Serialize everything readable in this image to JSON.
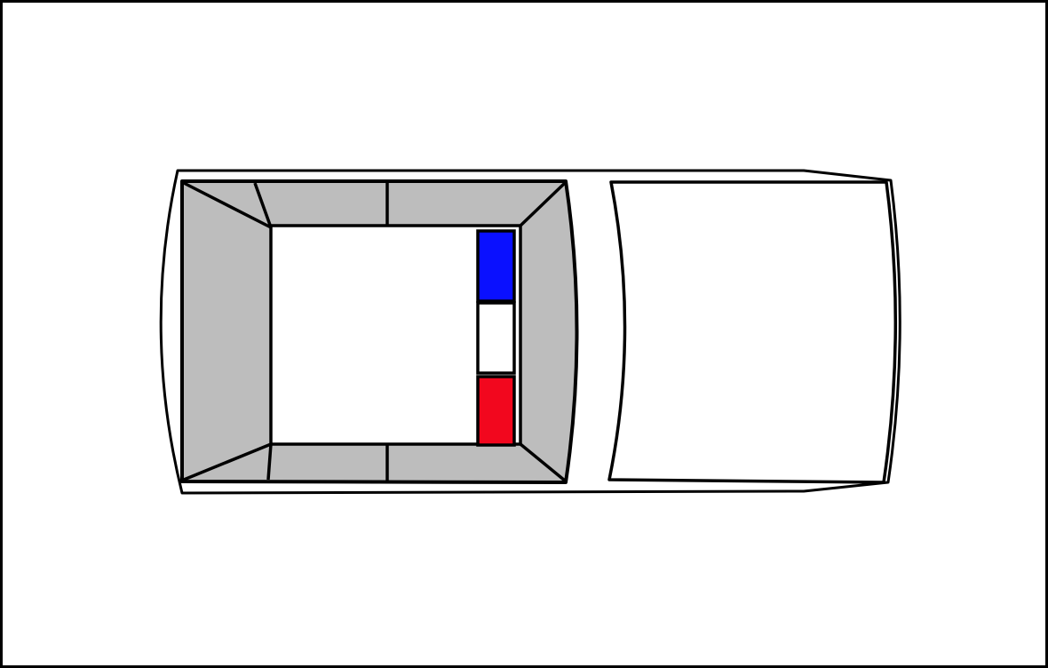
{
  "diagram": {
    "subject": "police-car-top-view",
    "colors": {
      "background": "#ffffff",
      "outline": "#000000",
      "body": "#ffffff",
      "cabin_trim": "#bdbdbd",
      "roof": "#ffffff",
      "light_bar_left": "#0a10ff",
      "light_bar_center": "#ffffff",
      "light_bar_right": "#f2071e"
    },
    "light_bar": {
      "segments": [
        "blue",
        "white",
        "red"
      ]
    }
  }
}
